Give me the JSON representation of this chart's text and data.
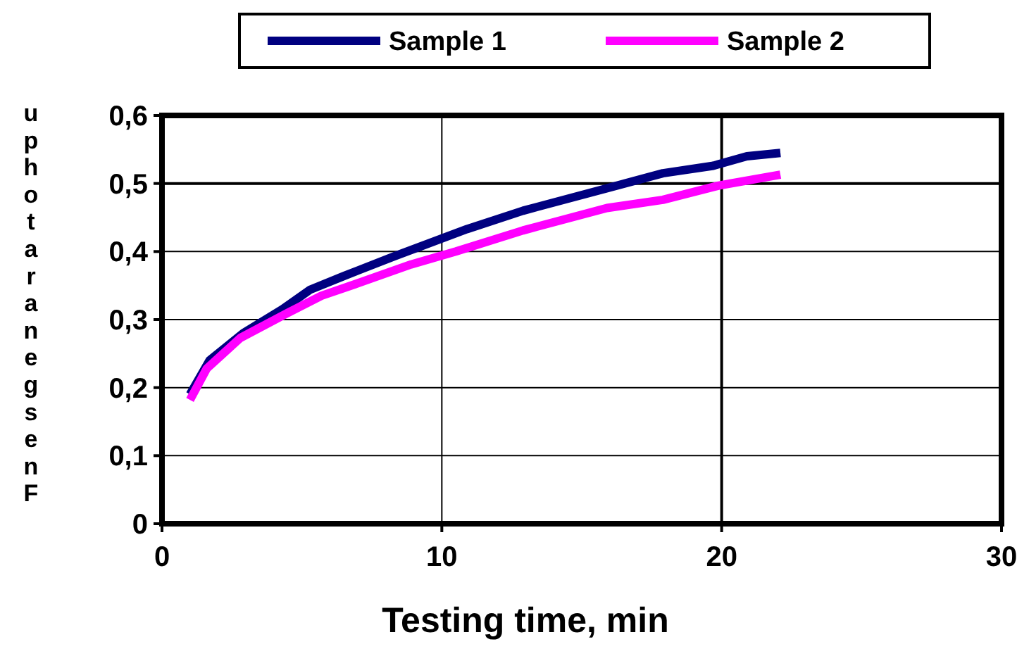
{
  "chart_data": {
    "type": "line",
    "xlabel": "Testing time, min",
    "ylabel": "uphotaranegsenF",
    "xlim": [
      0,
      30
    ],
    "xticks": [
      0,
      10,
      20,
      30
    ],
    "ylim": [
      0,
      0.6
    ],
    "yticks": [
      {
        "value": 0,
        "label": "0"
      },
      {
        "value": 0.1,
        "label": "0,1"
      },
      {
        "value": 0.2,
        "label": "0,2"
      },
      {
        "value": 0.3,
        "label": "0,3"
      },
      {
        "value": 0.4,
        "label": "0,4"
      },
      {
        "value": 0.5,
        "label": "0,5"
      },
      {
        "value": 0.6,
        "label": "0,6"
      }
    ],
    "grid": true,
    "legend": "top",
    "line_style": "solid",
    "series": [
      {
        "name": "Sample 1",
        "color": "#000080",
        "x": [
          1,
          1.7,
          2.9,
          4.3,
          5.3,
          6.5,
          8.3,
          10.9,
          12.9,
          15.9,
          17.9,
          19.7,
          20.9,
          22.1
        ],
        "values": [
          0.19,
          0.24,
          0.28,
          0.315,
          0.344,
          0.364,
          0.393,
          0.433,
          0.46,
          0.493,
          0.515,
          0.526,
          0.54,
          0.545
        ]
      },
      {
        "name": "Sample 2",
        "color": "#ff00ff",
        "x": [
          1,
          1.6,
          2.8,
          4.5,
          5.7,
          6.9,
          8.9,
          10.5,
          12.9,
          15.9,
          17.9,
          19.9,
          22.1
        ],
        "values": [
          0.182,
          0.228,
          0.273,
          0.31,
          0.335,
          0.352,
          0.381,
          0.4,
          0.431,
          0.464,
          0.476,
          0.497,
          0.513
        ]
      }
    ]
  }
}
